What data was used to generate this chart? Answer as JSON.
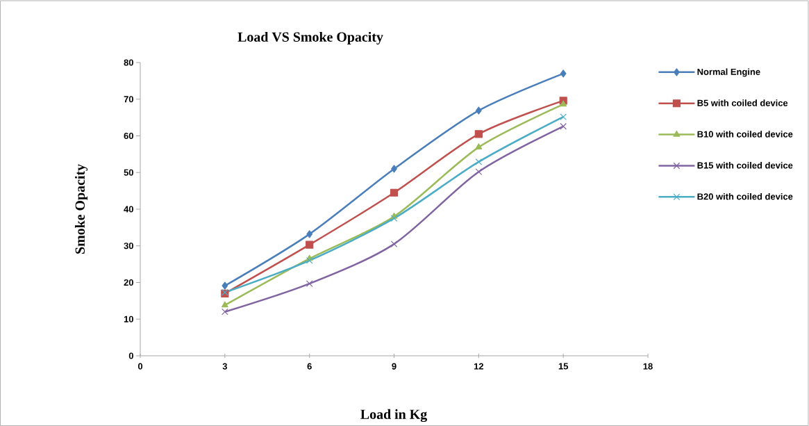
{
  "chart_data": {
    "type": "line",
    "title": "Load VS Smoke Opacity",
    "xlabel": "Load in Kg",
    "ylabel": "Smoke Opacity",
    "x": [
      3,
      6,
      9,
      12,
      15
    ],
    "xlim": [
      0,
      18
    ],
    "xticks": [
      0,
      3,
      6,
      9,
      12,
      15,
      18
    ],
    "ylim": [
      0,
      80
    ],
    "yticks": [
      0,
      10,
      20,
      30,
      40,
      50,
      60,
      70,
      80
    ],
    "grid": false,
    "legend": "right",
    "line_style": "solid",
    "series": [
      {
        "name": "Normal Engine",
        "color": "#4a7ebb",
        "marker": "diamond",
        "values": [
          19.1,
          33.2,
          51,
          66.9,
          77
        ]
      },
      {
        "name": "B5 with coiled device",
        "color": "#c0504d",
        "marker": "square",
        "values": [
          17,
          30.3,
          44.5,
          60.5,
          69.6
        ]
      },
      {
        "name": "B10 with coiled device",
        "color": "#9bbb59",
        "marker": "triangle",
        "values": [
          13.8,
          26.5,
          38,
          56.9,
          68.6
        ]
      },
      {
        "name": "B15 with coiled device",
        "color": "#8064a2",
        "marker": "cross",
        "values": [
          12,
          19.7,
          30.5,
          50.2,
          62.6
        ]
      },
      {
        "name": "B20 with coiled device",
        "color": "#4bacc6",
        "marker": "cross",
        "values": [
          17.3,
          26,
          37.5,
          52.9,
          65.2
        ]
      }
    ]
  }
}
